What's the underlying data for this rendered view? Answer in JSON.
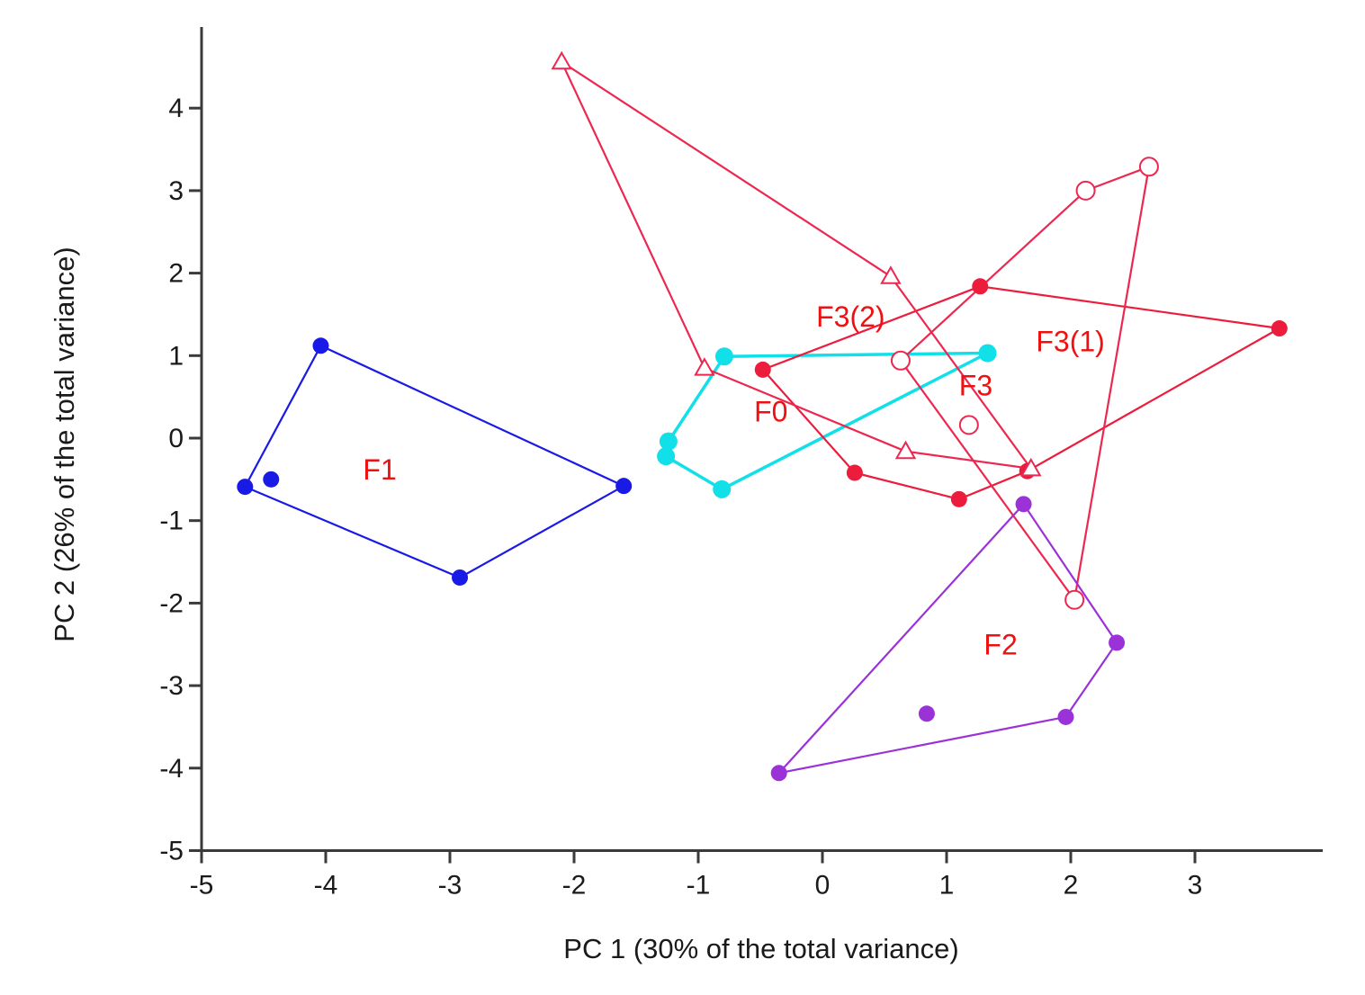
{
  "chart_data": {
    "type": "scatter",
    "title": "",
    "xlabel": "PC 1 (30% of the total variance)",
    "ylabel": "PC 2 (26% of the total variance)",
    "xlim": [
      -5,
      4
    ],
    "ylim": [
      -5,
      5
    ],
    "xticks": [
      -5,
      -4,
      -3,
      -2,
      -1,
      0,
      1,
      2,
      3
    ],
    "yticks": [
      -5,
      -4,
      -3,
      -2,
      -1,
      0,
      1,
      2,
      3,
      4
    ],
    "grid": false,
    "series": [
      {
        "name": "F1",
        "color": "#1a1ae6",
        "marker": "filled-circle",
        "points": [
          [
            -4.04,
            1.12
          ],
          [
            -1.6,
            -0.58
          ],
          [
            -2.92,
            -1.69
          ],
          [
            -4.65,
            -0.59
          ],
          [
            -4.44,
            -0.5
          ]
        ],
        "hull": [
          [
            -4.04,
            1.12
          ],
          [
            -1.6,
            -0.58
          ],
          [
            -2.92,
            -1.69
          ],
          [
            -4.65,
            -0.59
          ]
        ]
      },
      {
        "name": "F0",
        "color": "#11e0e8",
        "marker": "filled-circle",
        "points": [
          [
            -0.79,
            0.99
          ],
          [
            1.33,
            1.03
          ],
          [
            -0.81,
            -0.62
          ],
          [
            -1.26,
            -0.22
          ],
          [
            -1.24,
            -0.04
          ]
        ],
        "hull": [
          [
            -0.79,
            0.99
          ],
          [
            1.33,
            1.03
          ],
          [
            -0.81,
            -0.62
          ],
          [
            -1.26,
            -0.22
          ],
          [
            -1.24,
            -0.04
          ]
        ]
      },
      {
        "name": "F3(2)",
        "color": "#ec1c3c",
        "marker": "filled-circle",
        "points": [
          [
            -0.48,
            0.83
          ],
          [
            1.27,
            1.84
          ],
          [
            3.68,
            1.33
          ],
          [
            1.65,
            -0.4
          ],
          [
            1.1,
            -0.74
          ],
          [
            0.26,
            -0.42
          ]
        ],
        "hull": [
          [
            -0.48,
            0.83
          ],
          [
            1.27,
            1.84
          ],
          [
            3.68,
            1.33
          ],
          [
            1.65,
            -0.4
          ],
          [
            1.1,
            -0.74
          ],
          [
            0.26,
            -0.42
          ]
        ]
      },
      {
        "name": "F3(1)",
        "color": "#ec2850",
        "marker": "open-circle",
        "points": [
          [
            0.63,
            0.94
          ],
          [
            2.12,
            3.0
          ],
          [
            2.63,
            3.29
          ],
          [
            2.03,
            -1.96
          ],
          [
            1.18,
            0.16
          ]
        ],
        "hull": [
          [
            0.63,
            0.94
          ],
          [
            2.12,
            3.0
          ],
          [
            2.63,
            3.29
          ],
          [
            2.03,
            -1.96
          ]
        ]
      },
      {
        "name": "F3",
        "color": "#ec2850",
        "marker": "open-triangle",
        "points": [
          [
            -2.1,
            4.56
          ],
          [
            0.55,
            1.96
          ],
          [
            1.68,
            -0.37
          ],
          [
            0.67,
            -0.16
          ],
          [
            -0.95,
            0.85
          ]
        ],
        "hull": [
          [
            -2.1,
            4.56
          ],
          [
            0.55,
            1.96
          ],
          [
            1.68,
            -0.37
          ],
          [
            0.67,
            -0.16
          ],
          [
            -0.95,
            0.85
          ]
        ]
      },
      {
        "name": "F2",
        "color": "#9b32d8",
        "marker": "filled-circle",
        "points": [
          [
            1.62,
            -0.8
          ],
          [
            2.37,
            -2.48
          ],
          [
            1.96,
            -3.38
          ],
          [
            -0.35,
            -4.06
          ],
          [
            0.84,
            -3.34
          ]
        ],
        "hull": [
          [
            1.62,
            -0.8
          ],
          [
            2.37,
            -2.48
          ],
          [
            1.96,
            -3.38
          ],
          [
            -0.35,
            -4.06
          ]
        ]
      }
    ],
    "annotations": [
      {
        "text": "F1",
        "x": -3.7,
        "y": -0.5,
        "color": "#ee1111"
      },
      {
        "text": "F0",
        "x": -0.55,
        "y": 0.2,
        "color": "#ee1111"
      },
      {
        "text": "F3(2)",
        "x": -0.05,
        "y": 1.35,
        "color": "#ee1111"
      },
      {
        "text": "F3(1)",
        "x": 1.72,
        "y": 1.05,
        "color": "#ee1111"
      },
      {
        "text": "F3",
        "x": 1.1,
        "y": 0.52,
        "color": "#ee1111"
      },
      {
        "text": "F2",
        "x": 1.3,
        "y": -2.62,
        "color": "#ee1111"
      }
    ]
  }
}
